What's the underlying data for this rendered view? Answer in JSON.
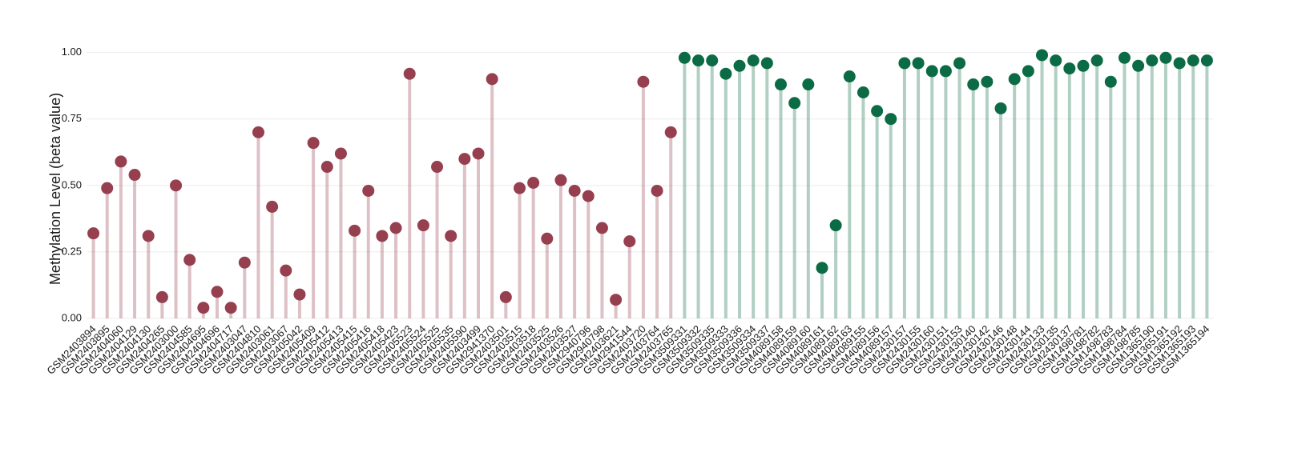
{
  "chart_data": {
    "type": "lollipop",
    "y_label": "Methylation Level (beta value)",
    "ylim": [
      0,
      1.02
    ],
    "yticks": [
      {
        "value": 0,
        "label": "0.00"
      },
      {
        "value": 0.25,
        "label": "0.25"
      },
      {
        "value": 0.5,
        "label": "0.50"
      },
      {
        "value": 0.75,
        "label": "0.75"
      },
      {
        "value": 1,
        "label": "1.00"
      }
    ],
    "grid": true,
    "categories": [
      "GSM2403894",
      "GSM2403895",
      "GSM2404060",
      "GSM2404129",
      "GSM2404130",
      "GSM2404265",
      "GSM2403000",
      "GSM2404585",
      "GSM2404695",
      "GSM2404696",
      "GSM2404717",
      "GSM2403047",
      "GSM2404810",
      "GSM2403061",
      "GSM2403067",
      "GSM2405042",
      "GSM2405409",
      "GSM2405412",
      "GSM2405413",
      "GSM2405415",
      "GSM2405416",
      "GSM2405418",
      "GSM2405423",
      "GSM2405523",
      "GSM2405524",
      "GSM2405525",
      "GSM2405535",
      "GSM2405590",
      "GSM2403499",
      "GSM2941370",
      "GSM2403501",
      "GSM2403515",
      "GSM2403518",
      "GSM2403525",
      "GSM2403526",
      "GSM2403527",
      "GSM2940796",
      "GSM2940798",
      "GSM2403621",
      "GSM2941544",
      "GSM2403720",
      "GSM2403764",
      "GSM2403765",
      "GSM3509331",
      "GSM3509332",
      "GSM3509335",
      "GSM3509333",
      "GSM3509336",
      "GSM3509334",
      "GSM3509337",
      "GSM4089158",
      "GSM4089159",
      "GSM4089160",
      "GSM4089161",
      "GSM4089162",
      "GSM4089163",
      "GSM4089155",
      "GSM4089156",
      "GSM4089157",
      "GSM2430157",
      "GSM2430155",
      "GSM2430160",
      "GSM2430151",
      "GSM2430153",
      "GSM2430140",
      "GSM2430142",
      "GSM2430146",
      "GSM2430148",
      "GSM2430144",
      "GSM2430133",
      "GSM2430135",
      "GSM2430137",
      "GSM1498781",
      "GSM1498782",
      "GSM1498783",
      "GSM1498784",
      "GSM1498785",
      "GSM1365190",
      "GSM1365191",
      "GSM1365192",
      "GSM1365193",
      "GSM1365194"
    ],
    "values": [
      0.32,
      0.49,
      0.59,
      0.54,
      0.31,
      0.08,
      0.5,
      0.22,
      0.04,
      0.1,
      0.04,
      0.21,
      0.7,
      0.42,
      0.18,
      0.09,
      0.66,
      0.57,
      0.62,
      0.33,
      0.48,
      0.31,
      0.34,
      0.92,
      0.35,
      0.57,
      0.31,
      0.6,
      0.62,
      0.9,
      0.08,
      0.49,
      0.51,
      0.3,
      0.52,
      0.48,
      0.46,
      0.34,
      0.07,
      0.29,
      0.89,
      0.48,
      0.7,
      0.98,
      0.97,
      0.97,
      0.92,
      0.95,
      0.97,
      0.96,
      0.88,
      0.81,
      0.88,
      0.19,
      0.35,
      0.91,
      0.85,
      0.78,
      0.75,
      0.96,
      0.96,
      0.93,
      0.93,
      0.96,
      0.88,
      0.89,
      0.79,
      0.9,
      0.93,
      0.99,
      0.97,
      0.94,
      0.95,
      0.97,
      0.89,
      0.98,
      0.95,
      0.97,
      0.98,
      0.96,
      0.97,
      0.97
    ],
    "colors": [
      "#963f4f",
      "#963f4f",
      "#963f4f",
      "#963f4f",
      "#963f4f",
      "#963f4f",
      "#963f4f",
      "#963f4f",
      "#963f4f",
      "#963f4f",
      "#963f4f",
      "#963f4f",
      "#963f4f",
      "#963f4f",
      "#963f4f",
      "#963f4f",
      "#963f4f",
      "#963f4f",
      "#963f4f",
      "#963f4f",
      "#963f4f",
      "#963f4f",
      "#963f4f",
      "#963f4f",
      "#963f4f",
      "#963f4f",
      "#963f4f",
      "#963f4f",
      "#963f4f",
      "#963f4f",
      "#963f4f",
      "#963f4f",
      "#963f4f",
      "#963f4f",
      "#963f4f",
      "#963f4f",
      "#963f4f",
      "#963f4f",
      "#963f4f",
      "#963f4f",
      "#963f4f",
      "#963f4f",
      "#963f4f",
      "#0b6b45",
      "#0b6b45",
      "#0b6b45",
      "#0b6b45",
      "#0b6b45",
      "#0b6b45",
      "#0b6b45",
      "#0b6b45",
      "#0b6b45",
      "#0b6b45",
      "#0b6b45",
      "#0b6b45",
      "#0b6b45",
      "#0b6b45",
      "#0b6b45",
      "#0b6b45",
      "#0b6b45",
      "#0b6b45",
      "#0b6b45",
      "#0b6b45",
      "#0b6b45",
      "#0b6b45",
      "#0b6b45",
      "#0b6b45",
      "#0b6b45",
      "#0b6b45",
      "#0b6b45",
      "#0b6b45",
      "#0b6b45",
      "#0b6b45",
      "#0b6b45",
      "#0b6b45",
      "#0b6b45",
      "#0b6b45",
      "#0b6b45",
      "#0b6b45",
      "#0b6b45",
      "#0b6b45",
      "#0b6b45"
    ]
  }
}
